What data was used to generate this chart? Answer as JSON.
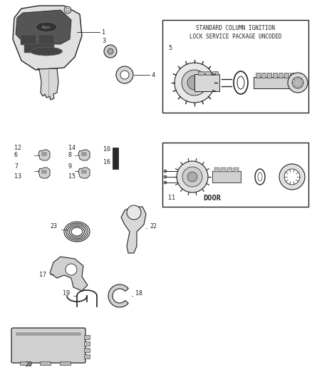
{
  "background_color": "#ffffff",
  "fig_width": 4.38,
  "fig_height": 5.33,
  "dpi": 100,
  "box1_title_line1": "STANDARD COLUMN IGNITION",
  "box1_title_line2": "LOCK SERVICE PACKAGE UNCODED",
  "box1_label": "5",
  "box2_label": "11",
  "box2_text": "DOOR",
  "dark": "#222222",
  "gray": "#888888",
  "light_gray": "#cccccc",
  "mid_gray": "#aaaaaa",
  "fs_label": 6.0,
  "fs_door": 7.5
}
